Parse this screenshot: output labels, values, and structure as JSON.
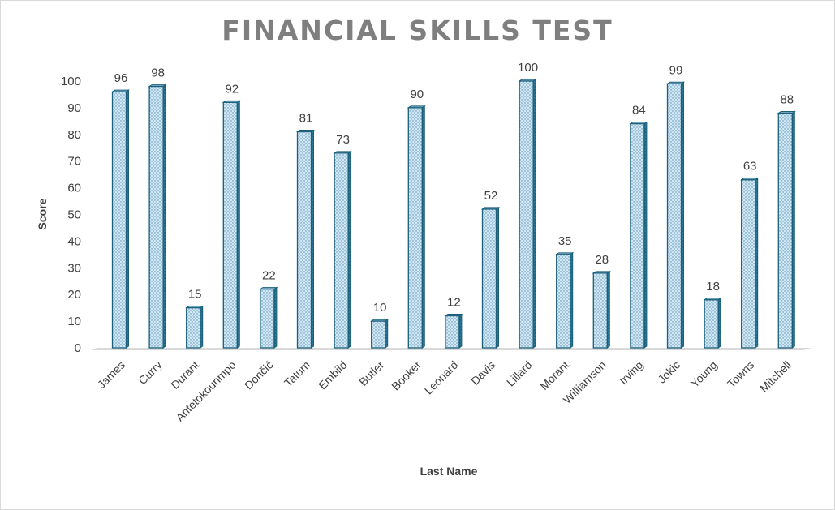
{
  "chart_data": {
    "type": "bar",
    "title": "FINANCIAL SKILLS TEST",
    "xlabel": "Last Name",
    "ylabel": "Score",
    "ylim": [
      0,
      100
    ],
    "yticks": [
      "0",
      "10",
      "20",
      "30",
      "40",
      "50",
      "60",
      "70",
      "80",
      "90",
      "100"
    ],
    "categories": [
      "James",
      "Curry",
      "Durant",
      "Antetokounmpo",
      "Dončić",
      "Tatum",
      "Embiid",
      "Butler",
      "Booker",
      "Leonard",
      "Davis",
      "Lillard",
      "Morant",
      "Williamson",
      "Irving",
      "Jokić",
      "Young",
      "Towns",
      "Mitchell"
    ],
    "values": [
      96,
      98,
      15,
      92,
      22,
      81,
      73,
      10,
      90,
      12,
      52,
      100,
      35,
      28,
      84,
      99,
      18,
      63,
      88
    ],
    "data_labels": [
      "96",
      "98",
      "15",
      "92",
      "22",
      "81",
      "73",
      "10",
      "90",
      "12",
      "52",
      "100",
      "35",
      "28",
      "84",
      "99",
      "18",
      "63",
      "88"
    ],
    "grid": false,
    "legend": "none",
    "colors": {
      "bar_fill": "#cfe6f5",
      "bar_side": "#1f6d8c",
      "bar_stroke": "#1b5f7a",
      "text": "#404040",
      "title": "#7f7f7f"
    }
  }
}
